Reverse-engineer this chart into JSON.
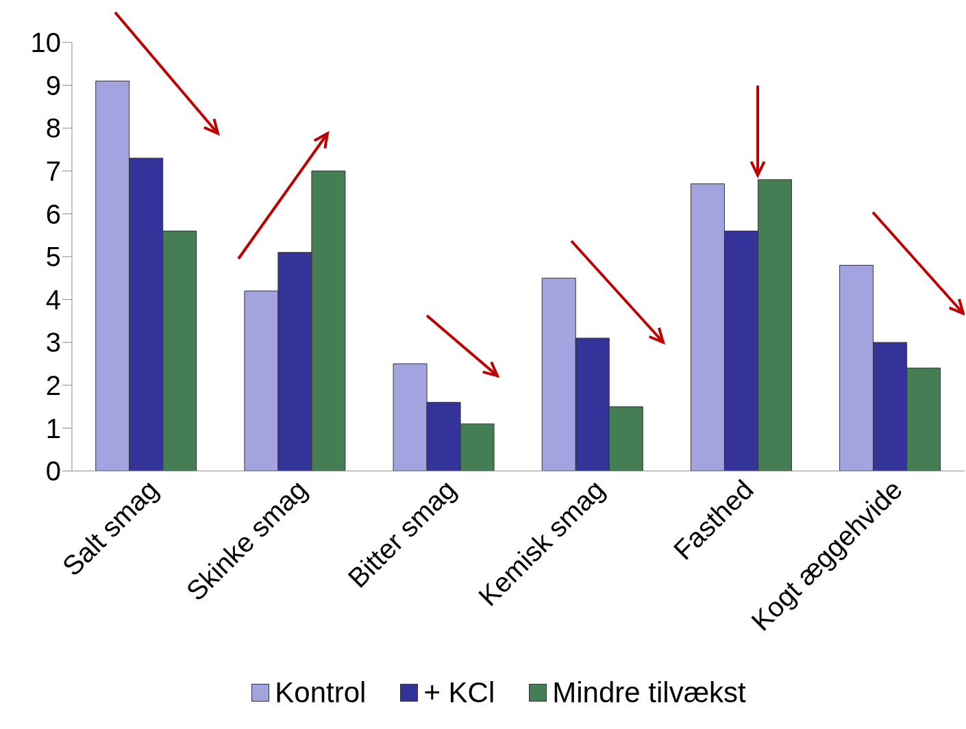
{
  "chart_data": {
    "type": "bar",
    "categories": [
      "Salt smag",
      "Skinke smag",
      "Bitter smag",
      "Kemisk smag",
      "Fasthed",
      "Kogt æggehvide"
    ],
    "series": [
      {
        "name": "Kontrol",
        "color": "#a3a3e0",
        "values": [
          9.1,
          4.2,
          2.5,
          4.5,
          6.7,
          4.8
        ]
      },
      {
        "name": "+ KCl",
        "color": "#333399",
        "values": [
          7.3,
          5.1,
          1.6,
          3.1,
          5.6,
          3.0
        ]
      },
      {
        "name": "Mindre tilvækst",
        "color": "#457d55",
        "values": [
          5.6,
          7.0,
          1.1,
          1.5,
          6.8,
          2.4
        ]
      }
    ],
    "ylim": [
      0,
      10
    ],
    "yticks": [
      0,
      1,
      2,
      3,
      4,
      5,
      6,
      7,
      8,
      9,
      10
    ],
    "grid": false,
    "legend": "bottom"
  }
}
